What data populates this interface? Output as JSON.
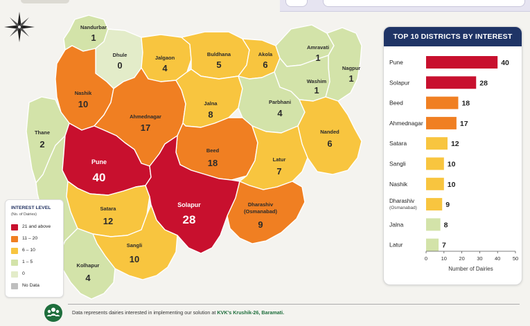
{
  "colors": {
    "21_plus": "#c8102e",
    "11_20": "#f07f22",
    "6_10": "#f8c53f",
    "1_5": "#d3e3a9",
    "zero": "#e3ecc9",
    "no_data": "#bfbfbf"
  },
  "icons": {
    "compass": "compass-rose-icon",
    "footer": "people-group-icon"
  },
  "districts": [
    {
      "id": "nandurbar",
      "name": "Nandurbar",
      "value": 1,
      "level": "1_5"
    },
    {
      "id": "dhule",
      "name": "Dhule",
      "value": 0,
      "level": "zero"
    },
    {
      "id": "jalgaon",
      "name": "Jalgaon",
      "value": 4,
      "level": "6_10"
    },
    {
      "id": "buldhana",
      "name": "Buldhana",
      "value": 5,
      "level": "6_10"
    },
    {
      "id": "akola",
      "name": "Akola",
      "value": 6,
      "level": "6_10"
    },
    {
      "id": "amravati",
      "name": "Amravati",
      "value": 1,
      "level": "1_5"
    },
    {
      "id": "nagpur",
      "name": "Nagpur",
      "value": 1,
      "level": "1_5"
    },
    {
      "id": "washim",
      "name": "Washim",
      "value": 1,
      "level": "1_5"
    },
    {
      "id": "nashik",
      "name": "Nashik",
      "value": 10,
      "level": "11_20"
    },
    {
      "id": "ahmednagar",
      "name": "Ahmednagar",
      "value": 17,
      "level": "11_20"
    },
    {
      "id": "jalna",
      "name": "Jalna",
      "value": 8,
      "level": "6_10"
    },
    {
      "id": "parbhani",
      "name": "Parbhani",
      "value": 4,
      "level": "1_5"
    },
    {
      "id": "nanded",
      "name": "Nanded",
      "value": 6,
      "level": "6_10"
    },
    {
      "id": "thane",
      "name": "Thane",
      "value": 2,
      "level": "1_5"
    },
    {
      "id": "pune",
      "name": "Pune",
      "value": 40,
      "level": "21_plus"
    },
    {
      "id": "beed",
      "name": "Beed",
      "value": 18,
      "level": "11_20"
    },
    {
      "id": "latur",
      "name": "Latur",
      "value": 7,
      "level": "6_10"
    },
    {
      "id": "satara",
      "name": "Satara",
      "value": 12,
      "level": "6_10"
    },
    {
      "id": "solapur",
      "name": "Solapur",
      "value": 28,
      "level": "21_plus"
    },
    {
      "id": "dharashiv",
      "name": "Dharashiv",
      "name2": "(Osmanabad)",
      "value": 9,
      "level": "11_20"
    },
    {
      "id": "sangli",
      "name": "Sangli",
      "value": 10,
      "level": "6_10"
    },
    {
      "id": "kolhapur",
      "name": "Kolhapur",
      "value": 4,
      "level": "1_5"
    }
  ],
  "legend": {
    "title": "INTEREST LEVEL",
    "subtitle": "(No. of Dairies)",
    "items": [
      {
        "label": "21 and above",
        "color": "#c8102e"
      },
      {
        "label": "11 – 20",
        "color": "#f07f22"
      },
      {
        "label": "6 – 10",
        "color": "#f8c53f"
      },
      {
        "label": "1 – 5",
        "color": "#d3e3a9"
      },
      {
        "label": "0",
        "color": "#e3ecc9"
      },
      {
        "label": "No Data",
        "color": "#bfbfbf"
      }
    ]
  },
  "chart_data": {
    "type": "bar",
    "orientation": "horizontal",
    "title": "TOP 10 DISTRICTS BY INTEREST",
    "categories": [
      "Pune",
      "Solapur",
      "Beed",
      "Ahmednagar",
      "Satara",
      "Sangli",
      "Nashik",
      "Dharashiv",
      "Jalna",
      "Latur"
    ],
    "category_sublabels": [
      "",
      "",
      "",
      "",
      "",
      "",
      "",
      "(Osmanabad)",
      "",
      ""
    ],
    "values": [
      40,
      28,
      18,
      17,
      12,
      10,
      10,
      9,
      8,
      7
    ],
    "bar_colors": [
      "#c8102e",
      "#c8102e",
      "#f07f22",
      "#f07f22",
      "#f8c53f",
      "#f8c53f",
      "#f8c53f",
      "#f8c53f",
      "#d3e3a9",
      "#d3e3a9"
    ],
    "xlabel": "Number of Dairies",
    "ylabel": "",
    "xlim": [
      0,
      50
    ],
    "xticks": [
      0,
      10,
      20,
      30,
      40,
      50
    ],
    "grid": false
  },
  "footer": {
    "text": "Data represents dairies interested in implementing our solution at ",
    "highlight": "KVK's Krushik-26, Baramati."
  }
}
